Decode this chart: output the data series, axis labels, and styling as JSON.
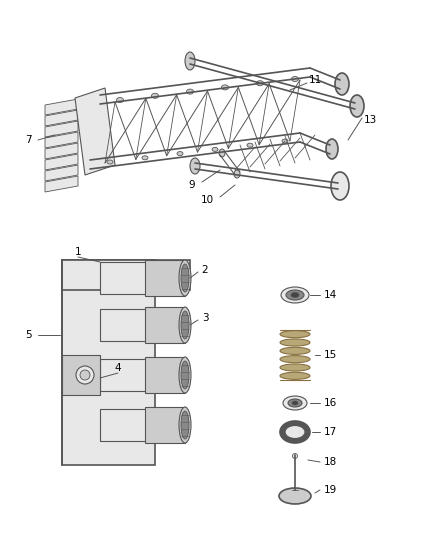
{
  "background_color": "#ffffff",
  "fig_width": 4.38,
  "fig_height": 5.33,
  "dpi": 100,
  "line_color": "#555555",
  "label_fontsize": 7.5,
  "label_color": "#000000",
  "dark_gray": "#444444",
  "mid_gray": "#888888",
  "light_gray": "#cccccc",
  "lighter_gray": "#e8e8e8",
  "white": "#ffffff"
}
